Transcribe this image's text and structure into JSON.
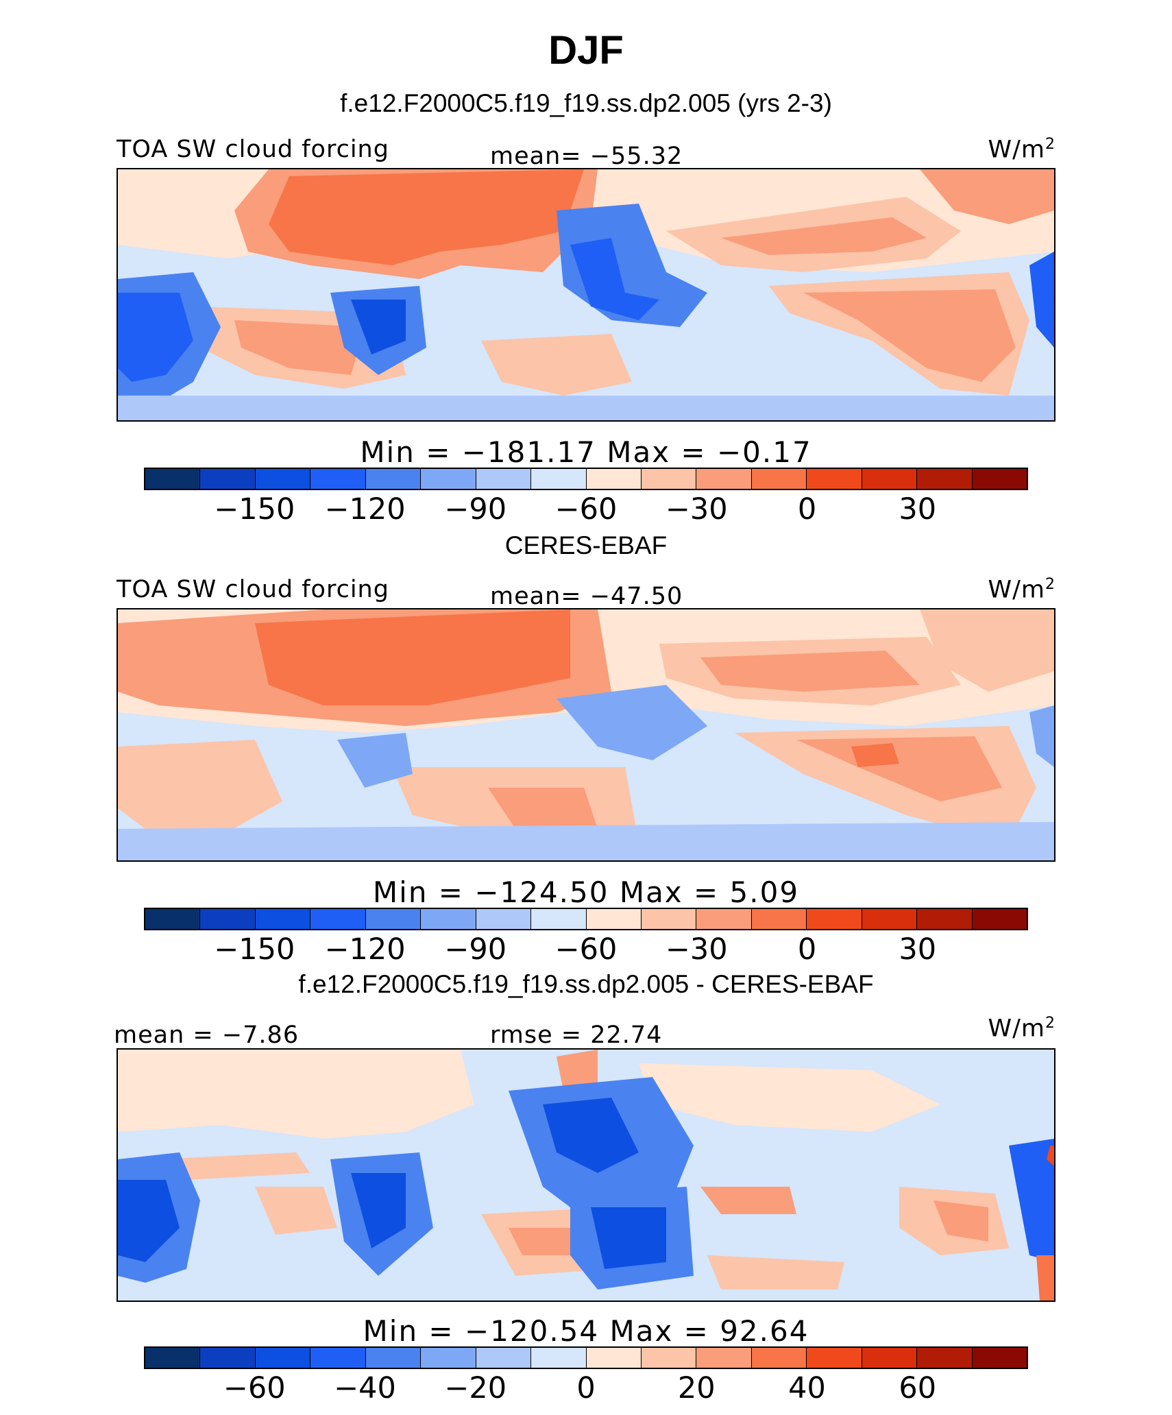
{
  "title": "DJF",
  "panels": [
    {
      "heading": "f.e12.F2000C5.f19_f19.ss.dp2.005 (yrs 2-3)",
      "left_label": "TOA SW cloud forcing",
      "center_label": "mean= −55.32",
      "units_base": "W/m",
      "units_exp": "2",
      "minmax": "Min = −181.17 Max = −0.17",
      "tick_labels": [
        "−150",
        "−120",
        "−90",
        "−60",
        "−30",
        "0",
        "30"
      ],
      "colors": [
        "#08306b",
        "#0c3fbf",
        "#0d4fe0",
        "#1f5ff5",
        "#4a82f0",
        "#7ea8f5",
        "#aec8fa",
        "#d6e6fb",
        "#ffe6d5",
        "#fcc4a8",
        "#f99d7a",
        "#f77548",
        "#f04a1c",
        "#d92f0c",
        "#b01c06",
        "#8a0a03"
      ]
    },
    {
      "heading": "CERES-EBAF",
      "left_label": "TOA SW cloud forcing",
      "center_label": "mean= −47.50",
      "units_base": "W/m",
      "units_exp": "2",
      "minmax": "Min = −124.50 Max = 5.09",
      "tick_labels": [
        "−150",
        "−120",
        "−90",
        "−60",
        "−30",
        "0",
        "30"
      ],
      "colors": [
        "#08306b",
        "#0c3fbf",
        "#0d4fe0",
        "#1f5ff5",
        "#4a82f0",
        "#7ea8f5",
        "#aec8fa",
        "#d6e6fb",
        "#ffe6d5",
        "#fcc4a8",
        "#f99d7a",
        "#f77548",
        "#f04a1c",
        "#d92f0c",
        "#b01c06",
        "#8a0a03"
      ]
    },
    {
      "heading": "f.e12.F2000C5.f19_f19.ss.dp2.005 - CERES-EBAF",
      "left_label": "mean = −7.86",
      "center_label": "rmse = 22.74",
      "units_base": "W/m",
      "units_exp": "2",
      "minmax": "Min = −120.54 Max = 92.64",
      "tick_labels": [
        "−60",
        "−40",
        "−20",
        "0",
        "20",
        "40",
        "60"
      ],
      "colors": [
        "#08306b",
        "#0c3fbf",
        "#0d4fe0",
        "#1f5ff5",
        "#4a82f0",
        "#7ea8f5",
        "#aec8fa",
        "#d6e6fb",
        "#ffe6d5",
        "#fcc4a8",
        "#f99d7a",
        "#f77548",
        "#f04a1c",
        "#d92f0c",
        "#b01c06",
        "#8a0a03"
      ]
    }
  ]
}
